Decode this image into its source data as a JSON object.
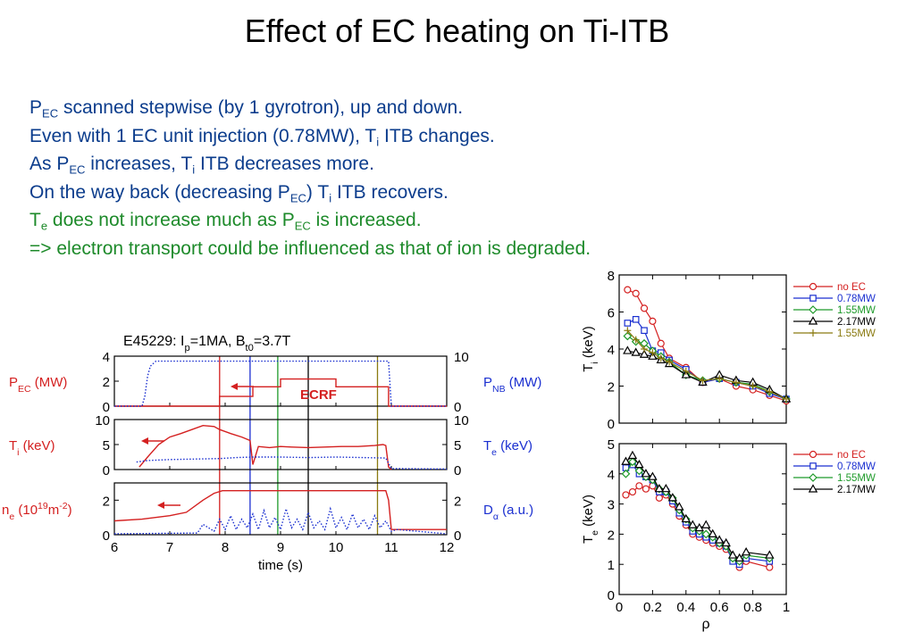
{
  "slide": {
    "title": "Effect of EC heating on Ti-ITB",
    "lines": [
      {
        "color": "blue",
        "parts": [
          {
            "t": "P"
          },
          {
            "t": "EC",
            "s": "sub"
          },
          {
            "t": " scanned stepwise (by 1 gyrotron), up and down."
          }
        ]
      },
      {
        "color": "blue",
        "parts": [
          {
            "t": "Even with 1 EC unit injection (0.78MW), T"
          },
          {
            "t": "i",
            "s": "sub"
          },
          {
            "t": " ITB changes."
          }
        ]
      },
      {
        "color": "blue",
        "parts": [
          {
            "t": "As P"
          },
          {
            "t": "EC",
            "s": "sub"
          },
          {
            "t": " increases, T"
          },
          {
            "t": "i",
            "s": "sub"
          },
          {
            "t": " ITB decreases more."
          }
        ]
      },
      {
        "color": "blue",
        "parts": [
          {
            "t": "On the way back (decreasing P"
          },
          {
            "t": "EC",
            "s": "sub"
          },
          {
            "t": ") T"
          },
          {
            "t": "i",
            "s": "sub"
          },
          {
            "t": " ITB recovers."
          }
        ]
      },
      {
        "color": "green",
        "parts": [
          {
            "t": "T"
          },
          {
            "t": "e",
            "s": "sub"
          },
          {
            "t": " does not increase much as P"
          },
          {
            "t": "EC",
            "s": "sub"
          },
          {
            "t": " is increased."
          }
        ]
      },
      {
        "color": "green",
        "parts": [
          {
            "t": "=> electron transport could be influenced as that of ion is degraded."
          }
        ]
      }
    ]
  },
  "colors": {
    "text_blue": "#0b3c8c",
    "text_green": "#1d8a2a",
    "red": "#d42020",
    "blue": "#1a2fd0",
    "green": "#1e9a2a",
    "black": "#000000",
    "olive": "#8a7a10"
  },
  "chart_data": [
    {
      "type": "line",
      "header": "E45229: I",
      "header_parts": [
        {
          "t": "E45229: I"
        },
        {
          "t": "p",
          "s": "sub"
        },
        {
          "t": "=1MA, B"
        },
        {
          "t": "t0",
          "s": "sub"
        },
        {
          "t": "=3.7T"
        }
      ],
      "xlabel": "time (s)",
      "xlim": [
        6,
        12
      ],
      "xticks": [
        "6",
        "7",
        "8",
        "9",
        "10",
        "11",
        "12"
      ],
      "markers": [
        {
          "x": 7.9,
          "color": "red"
        },
        {
          "x": 8.45,
          "color": "blue"
        },
        {
          "x": 8.95,
          "color": "green"
        },
        {
          "x": 9.5,
          "color": "black"
        },
        {
          "x": 10.75,
          "color": "olive"
        }
      ],
      "panels": [
        {
          "left_label_parts": [
            {
              "t": "P"
            },
            {
              "t": "EC",
              "s": "sub"
            },
            {
              "t": " (MW)"
            }
          ],
          "left_color": "red",
          "right_label_parts": [
            {
              "t": "P"
            },
            {
              "t": "NB",
              "s": "sub"
            },
            {
              "t": " (MW)"
            }
          ],
          "right_color": "blue",
          "ylim_left": [
            0,
            4
          ],
          "yticks_left": [
            "4",
            "2",
            "0"
          ],
          "ylim_right": [
            0,
            10
          ],
          "yticks_right": [
            "10",
            "0"
          ],
          "annotation": "ECRF",
          "series": [
            {
              "name": "P_EC",
              "axis": "left",
              "color": "red",
              "style": "solid",
              "x": [
                6,
                7.9,
                7.9,
                8.5,
                8.5,
                9.0,
                9.0,
                10.0,
                10.0,
                10.95,
                10.95,
                12
              ],
              "y": [
                0,
                0,
                0.78,
                0.78,
                1.55,
                1.55,
                2.17,
                2.17,
                1.55,
                1.55,
                0,
                0
              ]
            },
            {
              "name": "P_NB",
              "axis": "right",
              "color": "blue",
              "style": "dotted",
              "x": [
                6,
                6.5,
                6.55,
                6.6,
                6.65,
                6.75,
                10.95,
                11.0,
                12
              ],
              "y": [
                0,
                0,
                2,
                6,
                8,
                9,
                9,
                0,
                0
              ]
            }
          ]
        },
        {
          "left_label_parts": [
            {
              "t": "T"
            },
            {
              "t": "i",
              "s": "sub"
            },
            {
              "t": " (keV)"
            }
          ],
          "left_color": "red",
          "right_label_parts": [
            {
              "t": "T"
            },
            {
              "t": "e",
              "s": "sub"
            },
            {
              "t": " (keV)"
            }
          ],
          "right_color": "blue",
          "ylim_left": [
            0,
            10
          ],
          "yticks_left": [
            "10",
            "5",
            "0"
          ],
          "ylim_right": [
            0,
            10
          ],
          "yticks_right": [
            "10",
            "5",
            "0"
          ],
          "series": [
            {
              "name": "T_i",
              "axis": "left",
              "color": "red",
              "style": "solid",
              "x": [
                6.45,
                6.6,
                6.8,
                7.0,
                7.2,
                7.4,
                7.6,
                7.8,
                7.9,
                8.1,
                8.3,
                8.45,
                8.5,
                8.6,
                8.8,
                9.0,
                9.2,
                9.5,
                9.8,
                10.1,
                10.4,
                10.7,
                10.85,
                10.9,
                10.95,
                11.0
              ],
              "y": [
                0.5,
                2.5,
                5.0,
                6.5,
                7.2,
                8.0,
                8.8,
                8.6,
                8.0,
                7.2,
                6.5,
                5.8,
                1.0,
                4.6,
                4.4,
                4.6,
                4.5,
                4.4,
                4.5,
                4.6,
                4.6,
                4.8,
                5.0,
                4.8,
                0.5,
                0
              ]
            },
            {
              "name": "T_e",
              "axis": "right",
              "color": "blue",
              "style": "dotted",
              "x": [
                6.4,
                6.6,
                7.0,
                7.5,
                7.9,
                8.2,
                8.5,
                9.0,
                9.5,
                10.0,
                10.5,
                10.9,
                11.0,
                12
              ],
              "y": [
                1.5,
                1.8,
                2.0,
                2.1,
                2.2,
                2.4,
                2.5,
                2.5,
                2.4,
                2.5,
                2.4,
                2.3,
                0.2,
                0.1
              ]
            }
          ]
        },
        {
          "left_label_parts": [
            {
              "t": "n"
            },
            {
              "t": "e",
              "s": "sub"
            },
            {
              "t": " (10"
            },
            {
              "t": "19",
              "s": "sup"
            },
            {
              "t": "m"
            },
            {
              "t": "-2",
              "s": "sup"
            },
            {
              "t": ")"
            }
          ],
          "left_color": "red",
          "right_label_parts": [
            {
              "t": "D"
            },
            {
              "t": "α",
              "s": "sub"
            },
            {
              "t": " (a.u.)"
            }
          ],
          "right_color": "blue",
          "ylim_left": [
            0,
            3
          ],
          "yticks_left": [
            "2",
            "0"
          ],
          "ylim_right": [
            0,
            3
          ],
          "yticks_right": [
            "2",
            "0"
          ],
          "series": [
            {
              "name": "n_e",
              "axis": "left",
              "color": "red",
              "style": "solid",
              "x": [
                6,
                6.5,
                7.0,
                7.3,
                7.6,
                7.8,
                7.95,
                8.2,
                9.0,
                10.0,
                10.9,
                10.95,
                11.0,
                12
              ],
              "y": [
                0.8,
                0.9,
                1.1,
                1.3,
                2.0,
                2.4,
                2.55,
                2.55,
                2.55,
                2.55,
                2.55,
                2.0,
                0.3,
                0.3
              ]
            },
            {
              "name": "D_alpha",
              "axis": "right",
              "color": "blue",
              "style": "dotted",
              "x": [
                6,
                7.5,
                7.6,
                7.8,
                7.9,
                8.0,
                8.1,
                8.2,
                8.3,
                8.4,
                8.5,
                8.6,
                8.7,
                8.8,
                8.9,
                9.0,
                9.1,
                9.2,
                9.3,
                9.4,
                9.5,
                9.6,
                9.7,
                9.8,
                9.9,
                10.0,
                10.1,
                10.2,
                10.3,
                10.4,
                10.5,
                10.6,
                10.7,
                10.8,
                10.9,
                11.0,
                11.1,
                12
              ],
              "y": [
                0.05,
                0.1,
                0.6,
                0.2,
                0.9,
                0.3,
                1.1,
                0.3,
                0.9,
                0.4,
                1.2,
                0.3,
                1.4,
                0.4,
                1.0,
                0.3,
                1.5,
                0.4,
                0.9,
                0.3,
                1.3,
                0.4,
                0.8,
                0.3,
                1.5,
                0.4,
                1.0,
                0.3,
                1.2,
                0.4,
                0.9,
                0.3,
                1.1,
                0.4,
                0.8,
                0.2,
                0.3,
                0.05
              ]
            }
          ]
        }
      ]
    },
    {
      "type": "line",
      "ylabel_parts": [
        {
          "t": "T"
        },
        {
          "t": "i",
          "s": "sub"
        },
        {
          "t": " (keV)"
        }
      ],
      "xlim": [
        0,
        1
      ],
      "ylim": [
        0,
        8
      ],
      "yticks": [
        "8",
        "6",
        "4",
        "2",
        "0"
      ],
      "series": [
        {
          "name": "no EC",
          "color": "red",
          "marker": "circle",
          "x": [
            0.05,
            0.1,
            0.15,
            0.2,
            0.25,
            0.3,
            0.4,
            0.5,
            0.6,
            0.7,
            0.8,
            0.9,
            1.0
          ],
          "y": [
            7.2,
            7.0,
            6.2,
            5.5,
            4.3,
            3.5,
            3.0,
            2.2,
            2.4,
            2.0,
            1.8,
            1.5,
            1.2
          ]
        },
        {
          "name": "0.78MW",
          "color": "blue",
          "marker": "square",
          "x": [
            0.05,
            0.1,
            0.15,
            0.2,
            0.25,
            0.3,
            0.4,
            0.5,
            0.6,
            0.7,
            0.8,
            0.9,
            1.0
          ],
          "y": [
            5.4,
            5.6,
            5.0,
            3.9,
            3.8,
            3.4,
            2.9,
            2.2,
            2.4,
            2.2,
            2.0,
            1.6,
            1.3
          ]
        },
        {
          "name": "1.55MW",
          "color": "green",
          "marker": "diamond",
          "x": [
            0.05,
            0.1,
            0.15,
            0.2,
            0.25,
            0.3,
            0.4,
            0.5,
            0.6,
            0.7,
            0.8,
            0.9,
            1.0
          ],
          "y": [
            4.7,
            4.4,
            4.3,
            3.9,
            3.6,
            3.3,
            2.6,
            2.3,
            2.4,
            2.2,
            2.1,
            1.7,
            1.3
          ]
        },
        {
          "name": "2.17MW",
          "color": "black",
          "marker": "triangle",
          "x": [
            0.05,
            0.1,
            0.15,
            0.2,
            0.25,
            0.3,
            0.4,
            0.5,
            0.6,
            0.7,
            0.8,
            0.9,
            1.0
          ],
          "y": [
            3.9,
            3.8,
            3.7,
            3.6,
            3.4,
            3.2,
            2.6,
            2.2,
            2.6,
            2.3,
            2.2,
            1.8,
            1.3
          ]
        },
        {
          "name": "1.55MW",
          "color": "olive",
          "marker": "plus",
          "x": [
            0.05,
            0.1,
            0.15,
            0.2,
            0.25,
            0.3,
            0.4,
            0.5,
            0.6,
            0.7,
            0.8,
            0.9,
            1.0
          ],
          "y": [
            5.0,
            4.5,
            4.0,
            3.8,
            3.5,
            3.3,
            2.8,
            2.3,
            2.4,
            2.2,
            2.0,
            1.7,
            1.3
          ]
        }
      ]
    },
    {
      "type": "line",
      "ylabel_parts": [
        {
          "t": "T"
        },
        {
          "t": "e",
          "s": "sub"
        },
        {
          "t": " (keV)"
        }
      ],
      "xlabel": "ρ",
      "xlim": [
        0,
        1
      ],
      "ylim": [
        0,
        5
      ],
      "xticks": [
        "0",
        "0.2",
        "0.4",
        "0.6",
        "0.8",
        "1"
      ],
      "yticks": [
        "5",
        "4",
        "3",
        "2",
        "1",
        "0"
      ],
      "series": [
        {
          "name": "no EC",
          "color": "red",
          "marker": "circle",
          "x": [
            0.04,
            0.08,
            0.12,
            0.16,
            0.2,
            0.24,
            0.28,
            0.32,
            0.36,
            0.4,
            0.44,
            0.48,
            0.52,
            0.56,
            0.6,
            0.64,
            0.68,
            0.72,
            0.76,
            0.9
          ],
          "y": [
            3.3,
            3.4,
            3.6,
            3.5,
            3.6,
            3.2,
            3.3,
            3.0,
            2.6,
            2.3,
            2.0,
            1.9,
            1.8,
            1.7,
            1.6,
            1.5,
            1.2,
            0.9,
            1.1,
            0.9
          ]
        },
        {
          "name": "0.78MW",
          "color": "blue",
          "marker": "square",
          "x": [
            0.04,
            0.08,
            0.12,
            0.16,
            0.2,
            0.24,
            0.28,
            0.32,
            0.36,
            0.4,
            0.44,
            0.48,
            0.52,
            0.56,
            0.6,
            0.64,
            0.68,
            0.72,
            0.76,
            0.9
          ],
          "y": [
            4.2,
            4.3,
            4.0,
            3.9,
            3.8,
            3.4,
            3.4,
            3.1,
            2.7,
            2.4,
            2.1,
            2.0,
            1.9,
            1.8,
            1.7,
            1.6,
            1.1,
            1.0,
            1.2,
            1.1
          ]
        },
        {
          "name": "1.55MW",
          "color": "green",
          "marker": "diamond",
          "x": [
            0.04,
            0.08,
            0.12,
            0.16,
            0.2,
            0.24,
            0.28,
            0.32,
            0.36,
            0.4,
            0.44,
            0.48,
            0.52,
            0.56,
            0.6,
            0.64,
            0.68,
            0.72,
            0.76,
            0.9
          ],
          "y": [
            4.0,
            4.4,
            4.1,
            3.9,
            3.8,
            3.5,
            3.4,
            3.2,
            2.8,
            2.5,
            2.2,
            2.1,
            2.0,
            1.9,
            1.7,
            1.6,
            1.2,
            1.1,
            1.3,
            1.2
          ]
        },
        {
          "name": "2.17MW",
          "color": "black",
          "marker": "triangle",
          "x": [
            0.04,
            0.08,
            0.12,
            0.16,
            0.2,
            0.24,
            0.28,
            0.32,
            0.36,
            0.4,
            0.44,
            0.48,
            0.52,
            0.56,
            0.6,
            0.64,
            0.68,
            0.72,
            0.76,
            0.9
          ],
          "y": [
            4.4,
            4.6,
            4.3,
            4.0,
            3.9,
            3.5,
            3.5,
            3.2,
            2.9,
            2.5,
            2.3,
            2.2,
            2.3,
            2.0,
            1.8,
            1.7,
            1.3,
            1.2,
            1.4,
            1.3
          ]
        }
      ]
    }
  ]
}
